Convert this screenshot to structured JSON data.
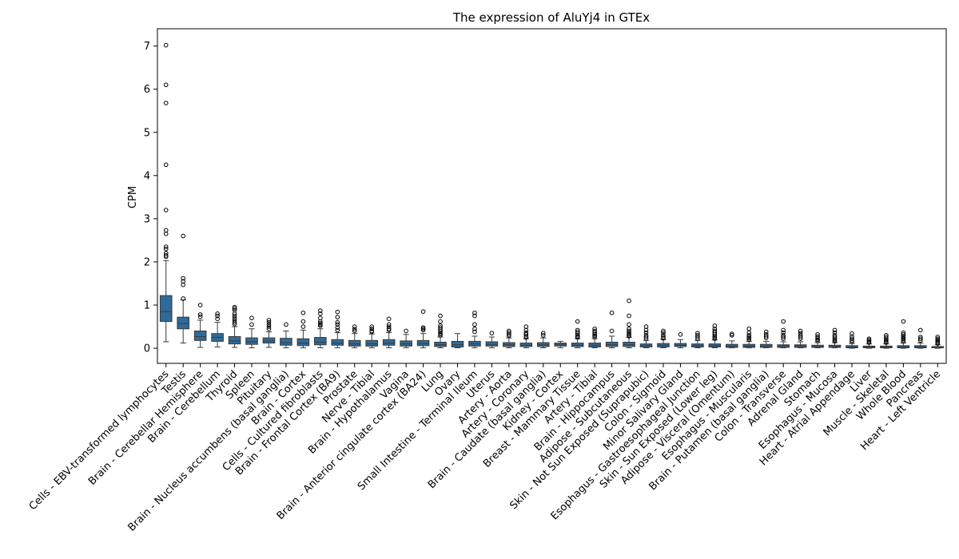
{
  "chart_data": {
    "type": "boxplot",
    "title": "The expression of AluYj4 in GTEx",
    "xlabel": "",
    "ylabel": "CPM",
    "ylim": [
      -0.35,
      7.4
    ],
    "yticks": [
      0,
      1,
      2,
      3,
      4,
      5,
      6,
      7
    ],
    "grid": false,
    "legend": "none",
    "box_color": "#2e6b9a",
    "edge_color": "#3a3a3a",
    "categories": [
      "Cells - EBV-transformed lymphocytes",
      "Testis",
      "Brain - Cerebellar Hemisphere",
      "Brain - Cerebellum",
      "Thyroid",
      "Spleen",
      "Pituitary",
      "Brain - Nucleus accumbens (basal ganglia)",
      "Brain - Cortex",
      "Cells - Cultured fibroblasts",
      "Brain - Frontal Cortex (BA9)",
      "Prostate",
      "Nerve - Tibial",
      "Brain - Hypothalamus",
      "Vagina",
      "Brain - Anterior cingulate cortex (BA24)",
      "Lung",
      "Ovary",
      "Small Intestine - Terminal Ileum",
      "Uterus",
      "Artery - Aorta",
      "Artery - Coronary",
      "Brain - Caudate (basal ganglia)",
      "Kidney - Cortex",
      "Breast - Mammary Tissue",
      "Artery - Tibial",
      "Brain - Hippocampus",
      "Adipose - Subcutaneous",
      "Skin - Not Sun Exposed (Suprapubic)",
      "Colon - Sigmoid",
      "Minor Salivary Gland",
      "Esophagus - Gastroesophageal Junction",
      "Skin - Sun Exposed (Lower leg)",
      "Adipose - Visceral (Omentum)",
      "Esophagus - Muscularis",
      "Brain - Putamen (basal ganglia)",
      "Colon - Transverse",
      "Adrenal Gland",
      "Stomach",
      "Esophagus - Mucosa",
      "Heart - Atrial Appendage",
      "Liver",
      "Muscle - Skeletal",
      "Whole Blood",
      "Pancreas",
      "Heart - Left Ventricle"
    ],
    "boxes": [
      {
        "whislo": 0.15,
        "q1": 0.62,
        "med": 0.85,
        "q3": 1.22,
        "whishi": 2.03,
        "fliers": [
          7.02,
          6.1,
          5.68,
          4.25,
          3.2,
          2.73,
          2.65,
          2.35,
          2.3,
          2.2,
          2.15,
          2.12
        ]
      },
      {
        "whislo": 0.12,
        "q1": 0.45,
        "med": 0.57,
        "q3": 0.72,
        "whishi": 1.12,
        "fliers": [
          2.6,
          1.62,
          1.55,
          1.47,
          1.15
        ]
      },
      {
        "whislo": 0.02,
        "q1": 0.18,
        "med": 0.27,
        "q3": 0.4,
        "whishi": 0.65,
        "fliers": [
          1.0,
          0.78,
          0.73
        ]
      },
      {
        "whislo": 0.03,
        "q1": 0.16,
        "med": 0.25,
        "q3": 0.34,
        "whishi": 0.6,
        "fliers": [
          0.8,
          0.75,
          0.68
        ]
      },
      {
        "whislo": 0.02,
        "q1": 0.1,
        "med": 0.17,
        "q3": 0.27,
        "whishi": 0.5,
        "fliers": [
          0.95,
          0.92,
          0.88,
          0.8,
          0.75,
          0.7,
          0.65,
          0.6,
          0.56
        ]
      },
      {
        "whislo": 0.01,
        "q1": 0.09,
        "med": 0.15,
        "q3": 0.24,
        "whishi": 0.45,
        "fliers": [
          0.7,
          0.55
        ]
      },
      {
        "whislo": 0.02,
        "q1": 0.12,
        "med": 0.17,
        "q3": 0.24,
        "whishi": 0.38,
        "fliers": [
          0.65,
          0.6,
          0.55,
          0.5,
          0.45
        ]
      },
      {
        "whislo": 0.01,
        "q1": 0.07,
        "med": 0.13,
        "q3": 0.23,
        "whishi": 0.4,
        "fliers": [
          0.55
        ]
      },
      {
        "whislo": 0.01,
        "q1": 0.06,
        "med": 0.12,
        "q3": 0.22,
        "whishi": 0.42,
        "fliers": [
          0.82,
          0.62,
          0.5
        ]
      },
      {
        "whislo": 0.01,
        "q1": 0.08,
        "med": 0.14,
        "q3": 0.25,
        "whishi": 0.45,
        "fliers": [
          0.87,
          0.8,
          0.7,
          0.62,
          0.58,
          0.55,
          0.52
        ]
      },
      {
        "whislo": 0.01,
        "q1": 0.07,
        "med": 0.12,
        "q3": 0.2,
        "whishi": 0.36,
        "fliers": [
          0.84,
          0.72,
          0.6,
          0.55,
          0.48,
          0.42
        ]
      },
      {
        "whislo": 0.01,
        "q1": 0.05,
        "med": 0.1,
        "q3": 0.18,
        "whishi": 0.34,
        "fliers": [
          0.5,
          0.44,
          0.4
        ]
      },
      {
        "whislo": 0.01,
        "q1": 0.05,
        "med": 0.1,
        "q3": 0.18,
        "whishi": 0.33,
        "fliers": [
          0.5,
          0.45,
          0.4,
          0.38
        ]
      },
      {
        "whislo": 0.01,
        "q1": 0.07,
        "med": 0.12,
        "q3": 0.2,
        "whishi": 0.36,
        "fliers": [
          0.68,
          0.55,
          0.5,
          0.45,
          0.42
        ]
      },
      {
        "whislo": 0.01,
        "q1": 0.05,
        "med": 0.1,
        "q3": 0.17,
        "whishi": 0.32,
        "fliers": [
          0.4
        ]
      },
      {
        "whislo": 0.01,
        "q1": 0.06,
        "med": 0.11,
        "q3": 0.18,
        "whishi": 0.34,
        "fliers": [
          0.85,
          0.48,
          0.45,
          0.42
        ]
      },
      {
        "whislo": 0.01,
        "q1": 0.04,
        "med": 0.08,
        "q3": 0.14,
        "whishi": 0.26,
        "fliers": [
          0.75,
          0.62,
          0.52,
          0.48,
          0.44,
          0.4,
          0.36,
          0.33,
          0.3
        ]
      },
      {
        "whislo": 0.01,
        "q1": 0.03,
        "med": 0.08,
        "q3": 0.16,
        "whishi": 0.34,
        "fliers": []
      },
      {
        "whislo": 0.01,
        "q1": 0.05,
        "med": 0.1,
        "q3": 0.16,
        "whishi": 0.28,
        "fliers": [
          0.82,
          0.75,
          0.55,
          0.45,
          0.38
        ]
      },
      {
        "whislo": 0.01,
        "q1": 0.05,
        "med": 0.09,
        "q3": 0.15,
        "whishi": 0.26,
        "fliers": [
          0.35
        ]
      },
      {
        "whislo": 0.01,
        "q1": 0.04,
        "med": 0.08,
        "q3": 0.13,
        "whishi": 0.24,
        "fliers": [
          0.4,
          0.36,
          0.32,
          0.29
        ]
      },
      {
        "whislo": 0.01,
        "q1": 0.04,
        "med": 0.07,
        "q3": 0.12,
        "whishi": 0.22,
        "fliers": [
          0.5,
          0.42,
          0.36,
          0.32,
          0.28,
          0.25
        ]
      },
      {
        "whislo": 0.01,
        "q1": 0.04,
        "med": 0.08,
        "q3": 0.13,
        "whishi": 0.24,
        "fliers": [
          0.35,
          0.3
        ]
      },
      {
        "whislo": 0.01,
        "q1": 0.05,
        "med": 0.09,
        "q3": 0.12,
        "whishi": 0.16,
        "fliers": []
      },
      {
        "whislo": 0.01,
        "q1": 0.04,
        "med": 0.07,
        "q3": 0.12,
        "whishi": 0.22,
        "fliers": [
          0.62,
          0.42,
          0.38,
          0.34,
          0.3,
          0.27,
          0.25
        ]
      },
      {
        "whislo": 0.01,
        "q1": 0.03,
        "med": 0.07,
        "q3": 0.12,
        "whishi": 0.22,
        "fliers": [
          0.45,
          0.4,
          0.36,
          0.32,
          0.29,
          0.26
        ]
      },
      {
        "whislo": 0.01,
        "q1": 0.04,
        "med": 0.08,
        "q3": 0.14,
        "whishi": 0.28,
        "fliers": [
          0.82,
          0.4
        ]
      },
      {
        "whislo": 0.01,
        "q1": 0.04,
        "med": 0.08,
        "q3": 0.14,
        "whishi": 0.25,
        "fliers": [
          1.1,
          0.75,
          0.55,
          0.45,
          0.4,
          0.36,
          0.33,
          0.3,
          0.28
        ]
      },
      {
        "whislo": 0.01,
        "q1": 0.03,
        "med": 0.06,
        "q3": 0.1,
        "whishi": 0.18,
        "fliers": [
          0.5,
          0.42,
          0.36,
          0.3,
          0.26,
          0.22
        ]
      },
      {
        "whislo": 0.01,
        "q1": 0.03,
        "med": 0.07,
        "q3": 0.11,
        "whishi": 0.2,
        "fliers": [
          0.4,
          0.36,
          0.3,
          0.26,
          0.23
        ]
      },
      {
        "whislo": 0.01,
        "q1": 0.04,
        "med": 0.07,
        "q3": 0.11,
        "whishi": 0.2,
        "fliers": [
          0.32
        ]
      },
      {
        "whislo": 0.01,
        "q1": 0.03,
        "med": 0.06,
        "q3": 0.1,
        "whishi": 0.18,
        "fliers": [
          0.35,
          0.3,
          0.26,
          0.22
        ]
      },
      {
        "whislo": 0.01,
        "q1": 0.03,
        "med": 0.06,
        "q3": 0.1,
        "whishi": 0.19,
        "fliers": [
          0.52,
          0.45,
          0.4,
          0.36,
          0.32,
          0.28,
          0.25,
          0.22
        ]
      },
      {
        "whislo": 0.01,
        "q1": 0.02,
        "med": 0.05,
        "q3": 0.09,
        "whishi": 0.17,
        "fliers": [
          0.33,
          0.3
        ]
      },
      {
        "whislo": 0.01,
        "q1": 0.02,
        "med": 0.05,
        "q3": 0.09,
        "whishi": 0.16,
        "fliers": [
          0.45,
          0.36,
          0.3,
          0.26,
          0.23,
          0.2
        ]
      },
      {
        "whislo": 0.01,
        "q1": 0.02,
        "med": 0.05,
        "q3": 0.09,
        "whishi": 0.16,
        "fliers": [
          0.38,
          0.32,
          0.28,
          0.24
        ]
      },
      {
        "whislo": 0.01,
        "q1": 0.02,
        "med": 0.05,
        "q3": 0.08,
        "whishi": 0.15,
        "fliers": [
          0.62,
          0.42,
          0.36,
          0.3,
          0.26,
          0.22
        ]
      },
      {
        "whislo": 0.01,
        "q1": 0.02,
        "med": 0.05,
        "q3": 0.08,
        "whishi": 0.15,
        "fliers": [
          0.4,
          0.35,
          0.3,
          0.26,
          0.22
        ]
      },
      {
        "whislo": 0.01,
        "q1": 0.02,
        "med": 0.04,
        "q3": 0.07,
        "whishi": 0.13,
        "fliers": [
          0.32,
          0.27,
          0.23,
          0.2,
          0.17
        ]
      },
      {
        "whislo": 0.01,
        "q1": 0.02,
        "med": 0.04,
        "q3": 0.07,
        "whishi": 0.13,
        "fliers": [
          0.42,
          0.36,
          0.3,
          0.26,
          0.22,
          0.19,
          0.16
        ]
      },
      {
        "whislo": 0.0,
        "q1": 0.01,
        "med": 0.03,
        "q3": 0.06,
        "whishi": 0.11,
        "fliers": [
          0.34,
          0.27,
          0.22,
          0.18,
          0.15
        ]
      },
      {
        "whislo": 0.0,
        "q1": 0.01,
        "med": 0.03,
        "q3": 0.05,
        "whishi": 0.1,
        "fliers": [
          0.22,
          0.19,
          0.16,
          0.13
        ]
      },
      {
        "whislo": 0.0,
        "q1": 0.01,
        "med": 0.03,
        "q3": 0.05,
        "whishi": 0.1,
        "fliers": [
          0.3,
          0.26,
          0.22,
          0.19,
          0.16,
          0.13
        ]
      },
      {
        "whislo": 0.0,
        "q1": 0.01,
        "med": 0.03,
        "q3": 0.06,
        "whishi": 0.12,
        "fliers": [
          0.62,
          0.36,
          0.32,
          0.28,
          0.25,
          0.22,
          0.19,
          0.16
        ]
      },
      {
        "whislo": 0.0,
        "q1": 0.01,
        "med": 0.03,
        "q3": 0.06,
        "whishi": 0.12,
        "fliers": [
          0.42,
          0.26,
          0.22,
          0.18
        ]
      },
      {
        "whislo": 0.0,
        "q1": 0.01,
        "med": 0.02,
        "q3": 0.04,
        "whishi": 0.08,
        "fliers": [
          0.26,
          0.22,
          0.19,
          0.16,
          0.13,
          0.11
        ]
      }
    ]
  }
}
